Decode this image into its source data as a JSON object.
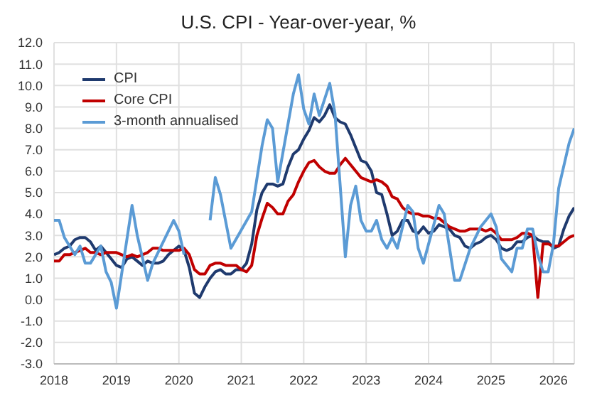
{
  "chart_data": {
    "type": "line",
    "title": "U.S. CPI - Year-over-year, %",
    "x": [
      "2018-01",
      "2018-02",
      "2018-03",
      "2018-04",
      "2018-05",
      "2018-06",
      "2018-07",
      "2018-08",
      "2018-09",
      "2018-10",
      "2018-11",
      "2018-12",
      "2019-01",
      "2019-02",
      "2019-03",
      "2019-04",
      "2019-05",
      "2019-06",
      "2019-07",
      "2019-08",
      "2019-09",
      "2019-10",
      "2019-11",
      "2019-12",
      "2020-01",
      "2020-02",
      "2020-03",
      "2020-04",
      "2020-05",
      "2020-06",
      "2020-07",
      "2020-08",
      "2020-09",
      "2020-10",
      "2020-11",
      "2020-12",
      "2021-01",
      "2021-02",
      "2021-03",
      "2021-04",
      "2021-05",
      "2021-06",
      "2021-07",
      "2021-08",
      "2021-09",
      "2021-10",
      "2021-11",
      "2021-12",
      "2022-01",
      "2022-02",
      "2022-03",
      "2022-04",
      "2022-05",
      "2022-06",
      "2022-07",
      "2022-08",
      "2022-09",
      "2022-10",
      "2022-11",
      "2022-12",
      "2023-01",
      "2023-02",
      "2023-03",
      "2023-04",
      "2023-05",
      "2023-06",
      "2023-07",
      "2023-08",
      "2023-09",
      "2023-10",
      "2023-11",
      "2023-12",
      "2024-01",
      "2024-02",
      "2024-03",
      "2024-04",
      "2024-05",
      "2024-06",
      "2024-07",
      "2024-08",
      "2024-09",
      "2024-10",
      "2024-11",
      "2024-12",
      "2025-01",
      "2025-02",
      "2025-03",
      "2025-04",
      "2025-05",
      "2025-06",
      "2025-07",
      "2025-08",
      "2025-09",
      "2025-10",
      "2025-11",
      "2025-12",
      "2026-01",
      "2026-02",
      "2026-03",
      "2026-04",
      "2026-05"
    ],
    "series": [
      {
        "name": "CPI",
        "color": "#1f3a6e",
        "values": [
          2.1,
          2.2,
          2.4,
          2.5,
          2.8,
          2.9,
          2.9,
          2.7,
          2.3,
          2.5,
          2.2,
          1.9,
          1.6,
          1.5,
          1.9,
          2.0,
          1.8,
          1.6,
          1.8,
          1.7,
          1.7,
          1.8,
          2.1,
          2.3,
          2.5,
          2.3,
          1.5,
          0.3,
          0.1,
          0.6,
          1.0,
          1.3,
          1.4,
          1.2,
          1.2,
          1.4,
          1.4,
          1.7,
          2.6,
          4.2,
          5.0,
          5.4,
          5.4,
          5.3,
          5.4,
          6.2,
          6.8,
          7.0,
          7.5,
          7.9,
          8.5,
          8.3,
          8.6,
          9.1,
          8.5,
          8.3,
          8.2,
          7.7,
          7.1,
          6.5,
          6.4,
          6.0,
          5.0,
          4.9,
          4.0,
          3.0,
          3.2,
          3.7,
          3.7,
          3.2,
          3.1,
          3.4,
          3.1,
          3.2,
          3.5,
          3.4,
          3.3,
          3.0,
          2.9,
          2.5,
          2.4,
          2.6,
          2.7,
          2.9,
          3.0,
          2.8,
          2.4,
          2.3,
          2.4,
          2.7,
          2.7,
          2.9,
          3.0,
          2.8,
          2.7,
          2.7,
          2.4,
          2.5,
          3.3,
          3.9,
          4.3
        ]
      },
      {
        "name": "Core CPI",
        "color": "#c00000",
        "values": [
          1.8,
          1.8,
          2.1,
          2.1,
          2.2,
          2.3,
          2.4,
          2.2,
          2.2,
          2.1,
          2.2,
          2.2,
          2.2,
          2.1,
          2.0,
          2.1,
          2.0,
          2.1,
          2.2,
          2.4,
          2.4,
          2.3,
          2.3,
          2.3,
          2.3,
          2.4,
          2.1,
          1.4,
          1.2,
          1.2,
          1.6,
          1.7,
          1.7,
          1.6,
          1.6,
          1.6,
          1.4,
          1.3,
          1.6,
          3.0,
          3.8,
          4.5,
          4.3,
          4.0,
          4.0,
          4.6,
          4.9,
          5.5,
          6.0,
          6.4,
          6.5,
          6.2,
          6.0,
          5.9,
          5.9,
          6.3,
          6.6,
          6.3,
          6.0,
          5.7,
          5.6,
          5.5,
          5.6,
          5.5,
          5.3,
          4.8,
          4.7,
          4.3,
          4.1,
          4.0,
          4.0,
          3.9,
          3.9,
          3.8,
          3.8,
          3.6,
          3.4,
          3.3,
          3.2,
          3.2,
          3.3,
          3.3,
          3.3,
          3.2,
          3.3,
          3.1,
          2.8,
          2.8,
          2.8,
          2.9,
          3.1,
          3.1,
          3.0,
          0.1,
          2.6,
          2.6,
          2.5,
          2.5,
          2.7,
          2.9,
          3.0
        ]
      },
      {
        "name": "3-month annualised",
        "color": "#5b9bd5",
        "x": [
          "2018-01",
          "2018-02",
          "2018-03",
          "2018-05",
          "2018-06",
          "2018-07",
          "2018-08",
          "2018-10",
          "2018-11",
          "2018-12",
          "2019-01",
          "2019-04",
          "2019-05",
          "2019-07",
          "2019-08",
          "2019-11",
          "2019-12",
          "2020-01",
          "2020-02",
          "2020-04",
          "2020-05",
          "2020-07",
          "2020-08",
          "2020-09",
          "2020-11",
          "2021-03",
          "2021-05",
          "2021-06",
          "2021-07",
          "2021-08",
          "2021-11",
          "2021-12",
          "2022-01",
          "2022-02",
          "2022-03",
          "2022-04",
          "2022-06",
          "2022-07",
          "2022-09",
          "2022-10",
          "2022-11",
          "2022-12",
          "2023-01",
          "2023-02",
          "2023-03",
          "2023-04",
          "2023-05",
          "2023-06",
          "2023-07",
          "2023-09",
          "2023-10",
          "2023-11",
          "2023-12",
          "2024-03",
          "2024-04",
          "2024-06",
          "2024-07",
          "2024-09",
          "2024-11",
          "2025-01",
          "2025-02",
          "2025-03",
          "2025-05",
          "2025-06",
          "2025-07",
          "2025-08",
          "2025-09",
          "2025-10",
          "2025-11",
          "2025-12",
          "2026-01",
          "2026-02",
          "2026-04",
          "2026-05"
        ],
        "values": [
          3.7,
          3.7,
          2.9,
          2.1,
          2.5,
          1.7,
          1.7,
          2.5,
          1.3,
          0.8,
          -0.4,
          4.4,
          3.0,
          0.9,
          1.7,
          3.2,
          3.7,
          3.2,
          2.1,
          null,
          null,
          3.7,
          5.7,
          4.9,
          2.4,
          4.1,
          7.2,
          8.4,
          8.0,
          5.5,
          9.6,
          10.5,
          8.9,
          8.2,
          9.6,
          8.6,
          10.1,
          8.7,
          2.0,
          4.4,
          5.3,
          3.7,
          3.2,
          3.2,
          3.7,
          2.8,
          2.4,
          2.9,
          2.4,
          4.4,
          4.1,
          2.4,
          1.7,
          4.4,
          4.0,
          0.9,
          0.9,
          2.4,
          3.4,
          4.0,
          3.4,
          1.9,
          1.3,
          2.4,
          2.4,
          3.3,
          3.3,
          2.1,
          1.3,
          1.3,
          2.6,
          5.2,
          7.3,
          8.0
        ]
      }
    ],
    "xlim": [
      "2018-01",
      "2026-05"
    ],
    "xticks": [
      "2018",
      "2019",
      "2020",
      "2021",
      "2022",
      "2023",
      "2024",
      "2025",
      "2026"
    ],
    "ylim": [
      -3,
      12
    ],
    "yticks": [
      {
        "value": -3,
        "label": "-3.0"
      },
      {
        "value": -2,
        "label": "-2.0"
      },
      {
        "value": -1,
        "label": "-1.0"
      },
      {
        "value": 0,
        "label": "0.0"
      },
      {
        "value": 1,
        "label": "1.0"
      },
      {
        "value": 2,
        "label": "2.0"
      },
      {
        "value": 3,
        "label": "3.0"
      },
      {
        "value": 4,
        "label": "4.0"
      },
      {
        "value": 5,
        "label": "5.0"
      },
      {
        "value": 6,
        "label": "6.0"
      },
      {
        "value": 7,
        "label": "7.0"
      },
      {
        "value": 8,
        "label": "8.0"
      },
      {
        "value": 9,
        "label": "9.0"
      },
      {
        "value": 10,
        "label": "10.0"
      },
      {
        "value": 11,
        "label": "11.0"
      },
      {
        "value": 12,
        "label": "12.0"
      }
    ],
    "grid": true,
    "legend": "top left",
    "marker": "none",
    "line_style": "solid"
  }
}
